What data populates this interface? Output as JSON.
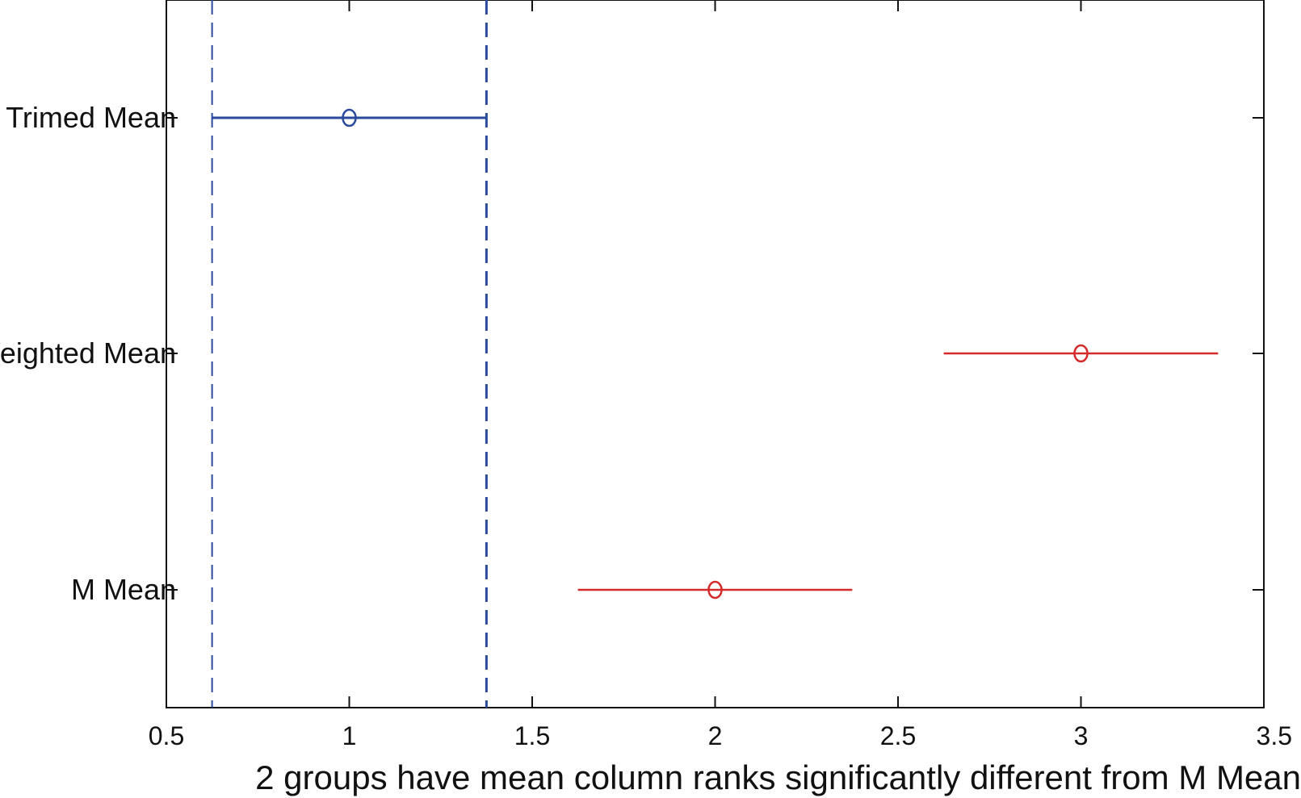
{
  "chart_data": {
    "type": "scatter",
    "subtype": "interval-plot",
    "xlabel": "2 groups have mean column ranks significantly different from M Mean",
    "xlim": [
      0.5,
      3.5
    ],
    "x_ticks": [
      "0.5",
      "1",
      "1.5",
      "2",
      "2.5",
      "3",
      "3.5"
    ],
    "x_tick_values": [
      0.5,
      1,
      1.5,
      2,
      2.5,
      3,
      3.5
    ],
    "grid": false,
    "groups": [
      {
        "name": "Trimed Mean",
        "mean": 1,
        "lower": 0.625,
        "upper": 1.375,
        "color": "#2a4a9c",
        "selected": true
      },
      {
        "name": "Weighted Mean",
        "mean": 3,
        "lower": 2.625,
        "upper": 3.375,
        "color": "#d42a2a",
        "selected": false
      },
      {
        "name": "M Mean",
        "mean": 2,
        "lower": 1.625,
        "upper": 2.375,
        "color": "#d42a2a",
        "selected": false
      }
    ],
    "reference_lines": {
      "x": [
        0.625,
        1.375
      ],
      "style": "dashed",
      "color": "#2a4a9c"
    }
  }
}
